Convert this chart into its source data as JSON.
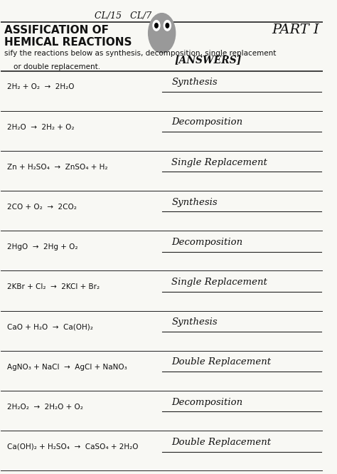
{
  "title_line1": "ASSIFICATION OF",
  "title_line2": "HEMICAL REACTIONS",
  "part_label": "PART I",
  "instructions_line1": "sify the reactions below as synthesis, decomposition, single replacement",
  "instructions_line2": "    or double replacement.",
  "answers_label": "[ANSWERS]",
  "top_label": "CL/15   CL/7",
  "reactions": [
    "2H₂ + O₂  →  2H₂O",
    "2H₂O  →  2H₂ + O₂",
    "Zn + H₂SO₄  →  ZnSO₄ + H₂",
    "2CO + O₂  →  2CO₂",
    "2HgO  →  2Hg + O₂",
    "2KBr + Cl₂  →  2KCl + Br₂",
    "CaO + H₂O  →  Ca(OH)₂",
    "AgNO₃ + NaCl  →  AgCl + NaNO₃",
    "2H₂O₂  →  2H₂O + O₂",
    "Ca(OH)₂ + H₂SO₄  →  CaSO₄ + 2H₂O"
  ],
  "answers": [
    "Synthesis",
    "Decomposition",
    "Single Replacement",
    "Synthesis",
    "Decomposition",
    "Single Replacement",
    "Synthesis",
    "Double Replacement",
    "Decomposition",
    "Double Replacement"
  ],
  "bg_color": "#f8f8f4",
  "line_color": "#222222",
  "text_color": "#111111",
  "header_color": "#111111"
}
